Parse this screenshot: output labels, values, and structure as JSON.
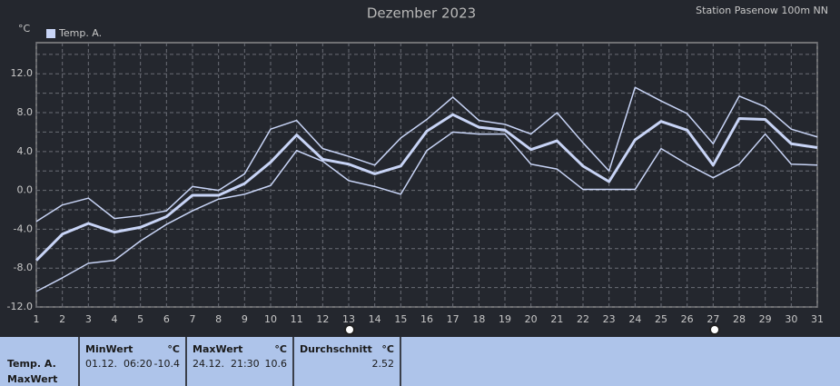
{
  "chart_data": {
    "type": "line",
    "title": "Dezember 2023",
    "subtitle": "Station Pasenow 100m NN",
    "y_label": "°C",
    "x": [
      1,
      2,
      3,
      4,
      5,
      6,
      7,
      8,
      9,
      10,
      11,
      12,
      13,
      14,
      15,
      16,
      17,
      18,
      19,
      20,
      21,
      22,
      23,
      24,
      25,
      26,
      27,
      28,
      29,
      30,
      31
    ],
    "xlim": [
      1,
      31
    ],
    "xticks": [
      1,
      2,
      3,
      4,
      5,
      6,
      7,
      8,
      9,
      10,
      11,
      12,
      13,
      14,
      15,
      16,
      17,
      18,
      19,
      20,
      21,
      22,
      23,
      24,
      25,
      26,
      27,
      28,
      29,
      30,
      31
    ],
    "ylim": [
      -12,
      15.2
    ],
    "yticks": [
      {
        "value": -12,
        "label": "-12.0"
      },
      {
        "value": -8,
        "label": "-8.0"
      },
      {
        "value": -4,
        "label": "-4.0"
      },
      {
        "value": 0,
        "label": "0.0"
      },
      {
        "value": 4,
        "label": "4.0"
      },
      {
        "value": 8,
        "label": "8.0"
      },
      {
        "value": 12,
        "label": "12.0"
      }
    ],
    "minor_yticks": [
      -10,
      -6,
      -2,
      2,
      6,
      10,
      14
    ],
    "grid": true,
    "series": [
      {
        "name": "Temp. A.",
        "color": "#c8d4f6",
        "width": 3,
        "values": [
          -7.2,
          -4.5,
          -3.4,
          -4.3,
          -3.8,
          -2.7,
          -0.5,
          -0.5,
          0.7,
          2.9,
          5.7,
          3.2,
          2.7,
          1.7,
          2.5,
          6.1,
          7.8,
          6.5,
          6.2,
          4.2,
          5.1,
          2.5,
          0.9,
          5.2,
          7.1,
          6.2,
          2.6,
          7.4,
          7.3,
          4.8,
          4.4
        ]
      },
      {
        "color": "#c8d4f6",
        "width": 1.5,
        "values": [
          -3.2,
          -1.5,
          -0.8,
          -2.9,
          -2.6,
          -2.1,
          0.4,
          0,
          1.7,
          6.3,
          7.2,
          4.3,
          3.5,
          2.6,
          5.4,
          7.3,
          9.6,
          7.2,
          6.8,
          5.8,
          8.0,
          4.9,
          2.0,
          10.6,
          9.2,
          7.9,
          4.8,
          9.7,
          8.6,
          6.3,
          5.5
        ]
      },
      {
        "color": "#c8d4f6",
        "width": 1.5,
        "values": [
          -10.4,
          -9.0,
          -7.5,
          -7.2,
          -5.2,
          -3.5,
          -2.1,
          -0.9,
          -0.4,
          0.5,
          4.1,
          3.0,
          1.0,
          0.4,
          -0.4,
          4.1,
          6.0,
          5.8,
          5.8,
          2.7,
          2.2,
          0.1,
          0.1,
          0.1,
          4.3,
          2.7,
          1.3,
          2.7,
          5.8,
          2.7,
          2.6
        ]
      }
    ]
  },
  "stats_panel": {
    "row_label": "Temp. A.",
    "row_sublabel": "MaxWert",
    "columns": [
      {
        "header": "MinWert",
        "unit": "°C",
        "time": "01.12.  06:20",
        "value": -10.4
      },
      {
        "header": "MaxWert",
        "unit": "°C",
        "time": "24.12.  21:30",
        "value": 10.6
      },
      {
        "header": "Durchschnitt",
        "unit": "°C",
        "value": 2.52
      }
    ]
  }
}
